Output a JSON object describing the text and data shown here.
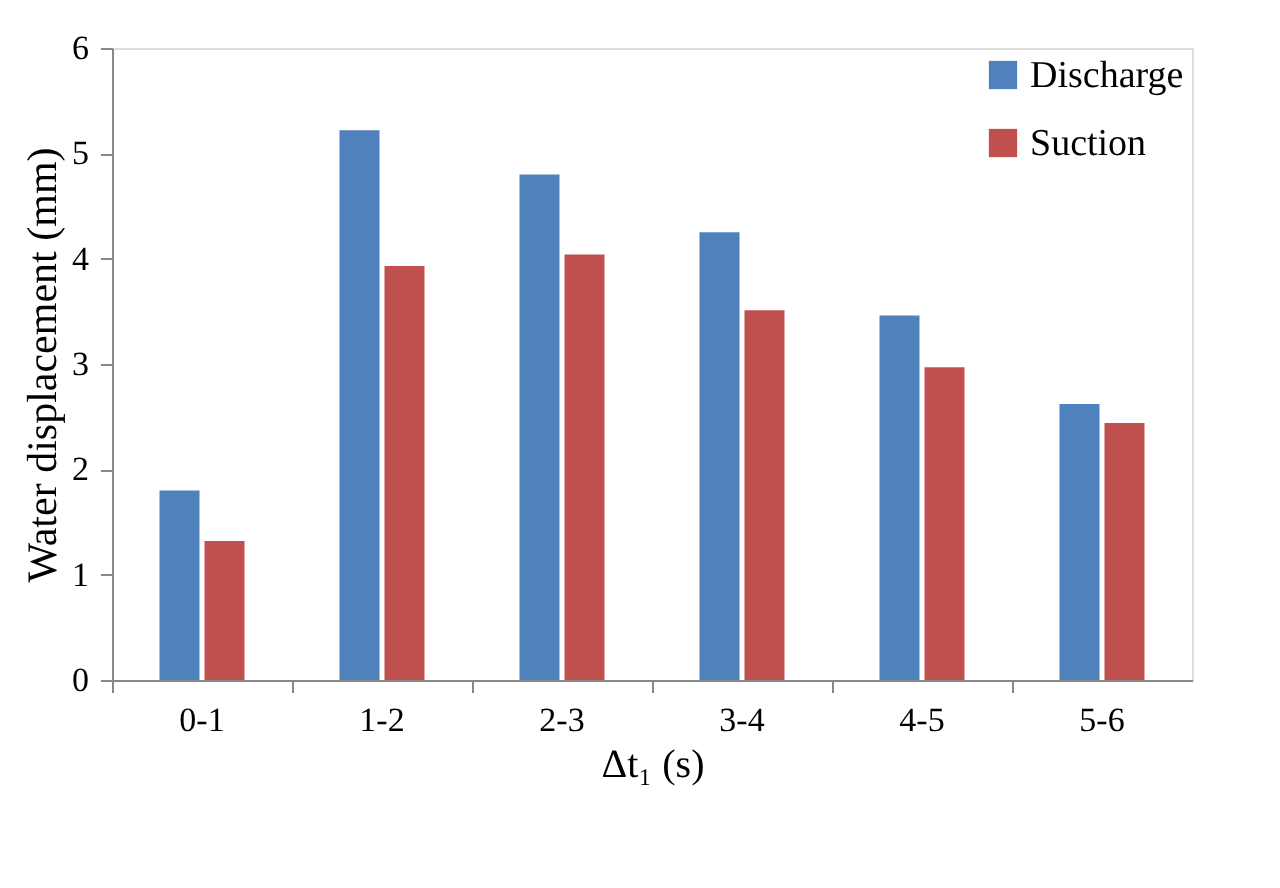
{
  "chart_data": {
    "type": "bar",
    "xlabel": "Δt₁ (s)",
    "ylabel": "Water displacement (mm)",
    "categories": [
      "0-1",
      "1-2",
      "2-3",
      "3-4",
      "4-5",
      "5-6"
    ],
    "series": [
      {
        "name": "Discharge",
        "color": "#4f81bd",
        "values": [
          1.8,
          5.22,
          4.8,
          4.25,
          3.46,
          2.62
        ]
      },
      {
        "name": "Suction",
        "color": "#c0504d",
        "values": [
          1.32,
          3.93,
          4.04,
          3.51,
          2.97,
          2.44
        ]
      }
    ],
    "ylim": [
      0,
      6
    ],
    "yticks": [
      0,
      1,
      2,
      3,
      4,
      5,
      6
    ],
    "grid": false,
    "legend": "top right"
  }
}
